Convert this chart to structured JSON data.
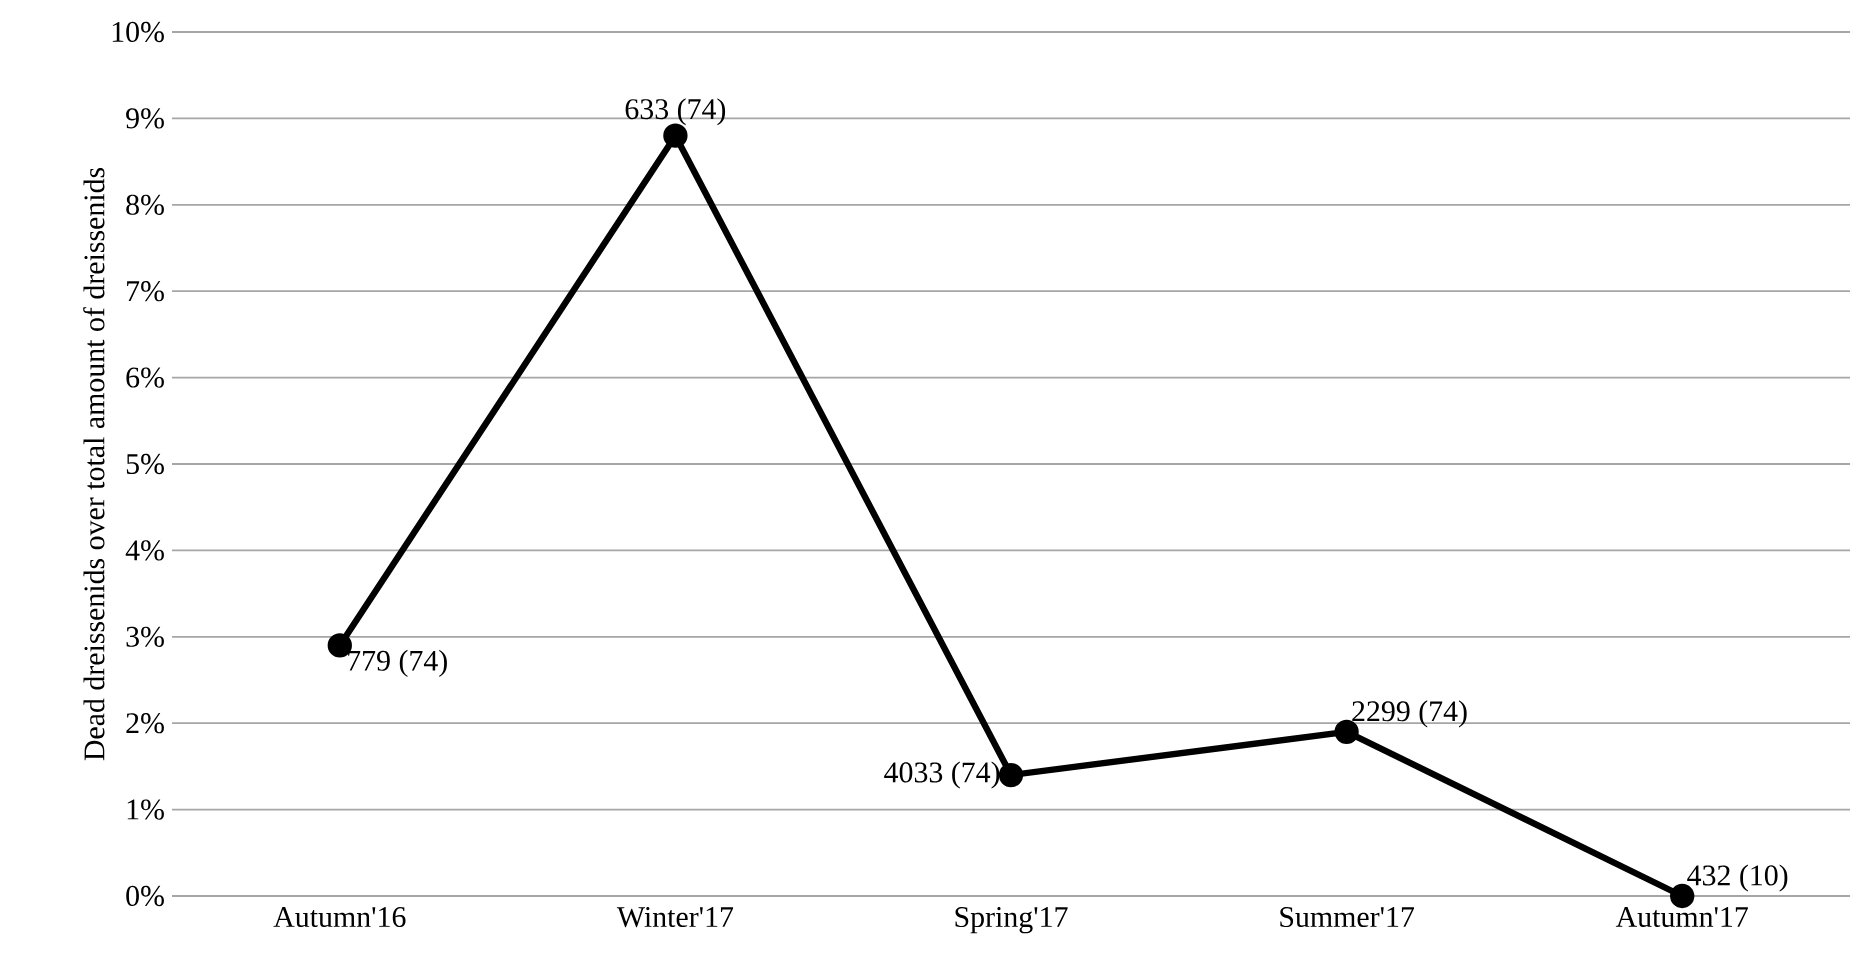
{
  "chart_data": {
    "type": "line",
    "ylabel": "Dead dreissenids over total amount of dreissenids",
    "categories": [
      "Autumn'16",
      "Winter'17",
      "Spring'17",
      "Summer'17",
      "Autumn'17"
    ],
    "values": [
      2.9,
      8.8,
      1.4,
      1.9,
      0.0
    ],
    "color": "#000000",
    "ylim": [
      0,
      10
    ],
    "yticks": [
      {
        "value": 0,
        "label": "0%"
      },
      {
        "value": 1,
        "label": "1%"
      },
      {
        "value": 2,
        "label": "2%"
      },
      {
        "value": 3,
        "label": "3%"
      },
      {
        "value": 4,
        "label": "4%"
      },
      {
        "value": 5,
        "label": "5%"
      },
      {
        "value": 6,
        "label": "6%"
      },
      {
        "value": 7,
        "label": "7%"
      },
      {
        "value": 8,
        "label": "8%"
      },
      {
        "value": 9,
        "label": "9%"
      },
      {
        "value": 10,
        "label": "10%"
      }
    ],
    "grid": "y",
    "marker": "circle",
    "line_style": "solid",
    "annotations": [
      {
        "text": "779 (74)",
        "x": "Autumn'16",
        "y": 2.9
      },
      {
        "text": "633 (74)",
        "x": "Winter'17",
        "y": 8.8
      },
      {
        "text": "4033 (74)",
        "x": "Spring'17",
        "y": 1.4
      },
      {
        "text": "2299 (74)",
        "x": "Summer'17",
        "y": 1.9
      },
      {
        "text": "432 (10)",
        "x": "Autumn'17",
        "y": 0.0
      }
    ]
  }
}
